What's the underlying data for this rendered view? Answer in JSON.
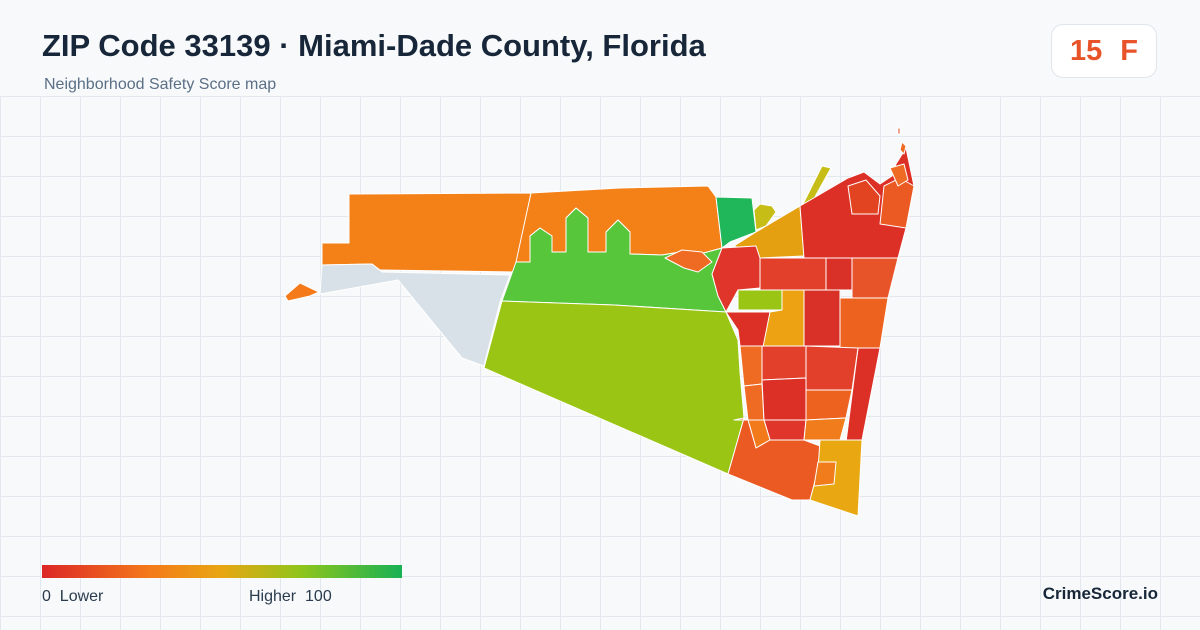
{
  "header": {
    "title": "ZIP Code 33139 · Miami-Dade County, Florida",
    "subtitle": "Neighborhood Safety Score map"
  },
  "score": {
    "value": "15",
    "grade": "F",
    "color": "#e8542a"
  },
  "legend": {
    "min_value": "0",
    "min_label": "Lower",
    "max_label": "Higher",
    "max_value": "100",
    "colors": [
      "#dc2626",
      "#f47a1a",
      "#e8a612",
      "#8fc51b",
      "#18b155"
    ]
  },
  "brand": "CrimeScore.io",
  "map": {
    "no_data_color": "#d9e1e8",
    "region_border_color": "#ffffff"
  }
}
